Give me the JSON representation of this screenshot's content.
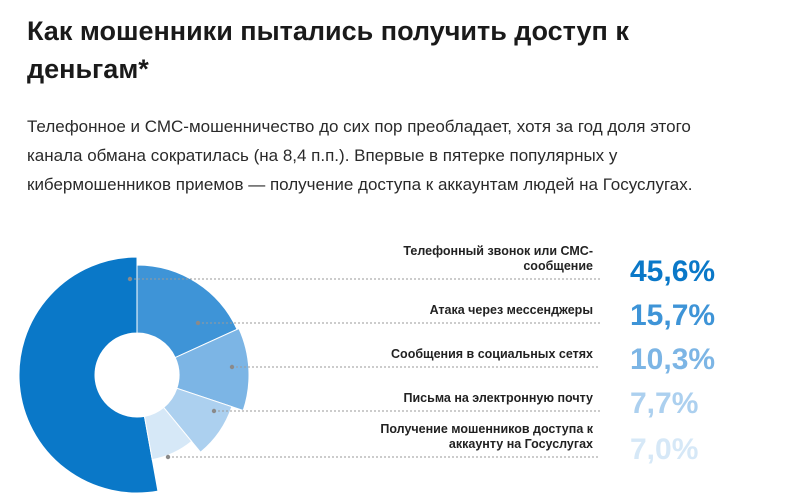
{
  "chart_data": {
    "type": "pie",
    "title": "Как мошенники пытались получить доступ к деньгам*",
    "subtitle": "Телефонное и СМС-мошенничество до сих пор преобладает, хотя за год доля этого канала обмана сократилась (на 8,4 п.п.). Впервые в пятерке популярных у кибермошенников приемов — получение доступа к аккаунтам людей на Госуслугах.",
    "categories": [
      "Телефонный звонок или СМС-сообщение",
      "Атака через мессенджеры",
      "Сообщения в социальных сетях",
      "Письма на электронную почту",
      "Получение мошенников доступа к аккаунту на Госуслугах"
    ],
    "values": [
      45.6,
      15.7,
      10.3,
      7.7,
      7.0
    ],
    "value_labels": [
      "45,6%",
      "15,7%",
      "10,3%",
      "7,7%",
      "7,0%"
    ],
    "colors": [
      "#0a78c8",
      "#3e94d7",
      "#7cb5e5",
      "#acd0ef",
      "#d6e8f7"
    ]
  }
}
